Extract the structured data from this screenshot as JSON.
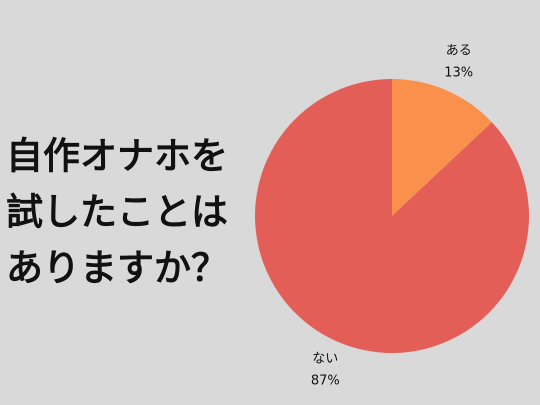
{
  "chart_data": {
    "type": "pie",
    "title": [
      "自作オナホを",
      "試したことは",
      "ありますか？"
    ],
    "categories": [
      "ある",
      "ない"
    ],
    "values": [
      13,
      87
    ],
    "value_labels": [
      "13%",
      "87%"
    ],
    "colors": [
      "#f9914d",
      "#e45e58"
    ]
  }
}
